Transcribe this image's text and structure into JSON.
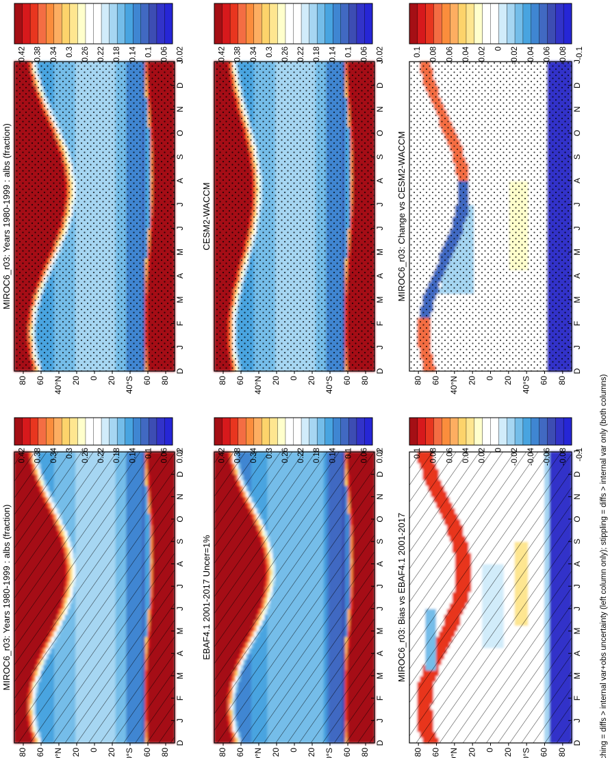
{
  "orientation": "rotated-90-clockwise",
  "footnote": "hatching = diffs > internal var+obs uncertainty (left column only); stippling = diffs > internal var only (both columns)",
  "months": [
    "D",
    "J",
    "F",
    "M",
    "A",
    "M",
    "J",
    "J",
    "A",
    "S",
    "O",
    "N",
    "D",
    "J"
  ],
  "lat_ticks": [
    "80",
    "60",
    "40°N",
    "20",
    "0",
    "20",
    "40°S",
    "60",
    "80"
  ],
  "lat_values": [
    80,
    60,
    40,
    20,
    0,
    -20,
    -40,
    -60,
    -80
  ],
  "colors": {
    "abs_scale": [
      "#a50f15",
      "#d7191c",
      "#e8361f",
      "#f46d43",
      "#fb8d3c",
      "#fdae61",
      "#fdd36b",
      "#fee690",
      "#ffffcc",
      "#ffffff",
      "#ffffff",
      "#d1ecfa",
      "#a6d6f2",
      "#74bde9",
      "#48a4e0",
      "#3f86d2",
      "#4169c2",
      "#3d4db3",
      "#3233c9",
      "#2626d6"
    ],
    "diff_scale": [
      "#a50f15",
      "#d7191c",
      "#e8361f",
      "#f46d43",
      "#fb8d3c",
      "#fdae61",
      "#fdd36b",
      "#fee690",
      "#ffffcc",
      "#ffffff",
      "#ffffff",
      "#d1ecfa",
      "#a6d6f2",
      "#74bde9",
      "#48a4e0",
      "#3f86d2",
      "#4169c2",
      "#3d4db3",
      "#3233c9",
      "#2626d6"
    ]
  },
  "chart_data": [
    {
      "id": "p1",
      "type": "heatmap",
      "title": "MIROC6_r03: Years 1980-1999 : albs (fraction)",
      "x": "month",
      "y": "latitude",
      "ylim": [
        -90,
        90
      ],
      "overlay": "hatching",
      "stipple": false,
      "kind": "abs",
      "variant": "miroc",
      "colorbar": {
        "labels": [
          "0.42",
          "0.38",
          "0.34",
          "0.3",
          "0.26",
          "0.22",
          "0.18",
          "0.14",
          "0.1",
          "0.06",
          "0.02"
        ]
      }
    },
    {
      "id": "p2",
      "type": "heatmap",
      "title": "MIROC6_r03: Years 1980-1999 : albs (fraction)",
      "x": "month",
      "y": "latitude",
      "ylim": [
        -90,
        90
      ],
      "overlay": "stippling",
      "stipple": true,
      "kind": "abs",
      "variant": "miroc",
      "colorbar": {
        "labels": [
          "0.42",
          "0.38",
          "0.34",
          "0.3",
          "0.26",
          "0.22",
          "0.18",
          "0.14",
          "0.1",
          "0.06",
          "0.02"
        ]
      }
    },
    {
      "id": "p3",
      "type": "heatmap",
      "title": "EBAF4.1 2001-2017 Uncer=1%",
      "x": "month",
      "y": "latitude",
      "ylim": [
        -90,
        90
      ],
      "overlay": "hatching",
      "stipple": false,
      "kind": "abs",
      "variant": "ebaf",
      "colorbar": {
        "labels": [
          "0.42",
          "0.38",
          "0.34",
          "0.3",
          "0.26",
          "0.22",
          "0.18",
          "0.14",
          "0.1",
          "0.06",
          "0.02"
        ]
      }
    },
    {
      "id": "p4",
      "type": "heatmap",
      "title": "CESM2-WACCM",
      "x": "month",
      "y": "latitude",
      "ylim": [
        -90,
        90
      ],
      "overlay": "stippling",
      "stipple": true,
      "kind": "abs",
      "variant": "cesm",
      "colorbar": {
        "labels": [
          "0.42",
          "0.38",
          "0.34",
          "0.3",
          "0.26",
          "0.22",
          "0.18",
          "0.14",
          "0.1",
          "0.06",
          "0.02"
        ]
      }
    },
    {
      "id": "p5",
      "type": "heatmap",
      "title": "MIROC6_r03: Bias vs EBAF4.1 2001-2017",
      "x": "month",
      "y": "latitude",
      "ylim": [
        -90,
        90
      ],
      "overlay": "hatching",
      "stipple": false,
      "kind": "diff",
      "variant": "bias",
      "colorbar": {
        "labels": [
          "0.1",
          "0.08",
          "0.06",
          "0.04",
          "0.02",
          "0",
          "-0.02",
          "-0.04",
          "-0.06",
          "-0.08",
          "-0.1"
        ]
      }
    },
    {
      "id": "p6",
      "type": "heatmap",
      "title": "MIROC6_r03: Change vs CESM2-WACCM",
      "x": "month",
      "y": "latitude",
      "ylim": [
        -90,
        90
      ],
      "overlay": "stippling",
      "stipple": true,
      "kind": "diff",
      "variant": "change",
      "colorbar": {
        "labels": [
          "0.1",
          "0.08",
          "0.06",
          "0.04",
          "0.02",
          "0",
          "-0.02",
          "-0.04",
          "-0.06",
          "-0.08",
          "-0.1"
        ]
      }
    }
  ]
}
